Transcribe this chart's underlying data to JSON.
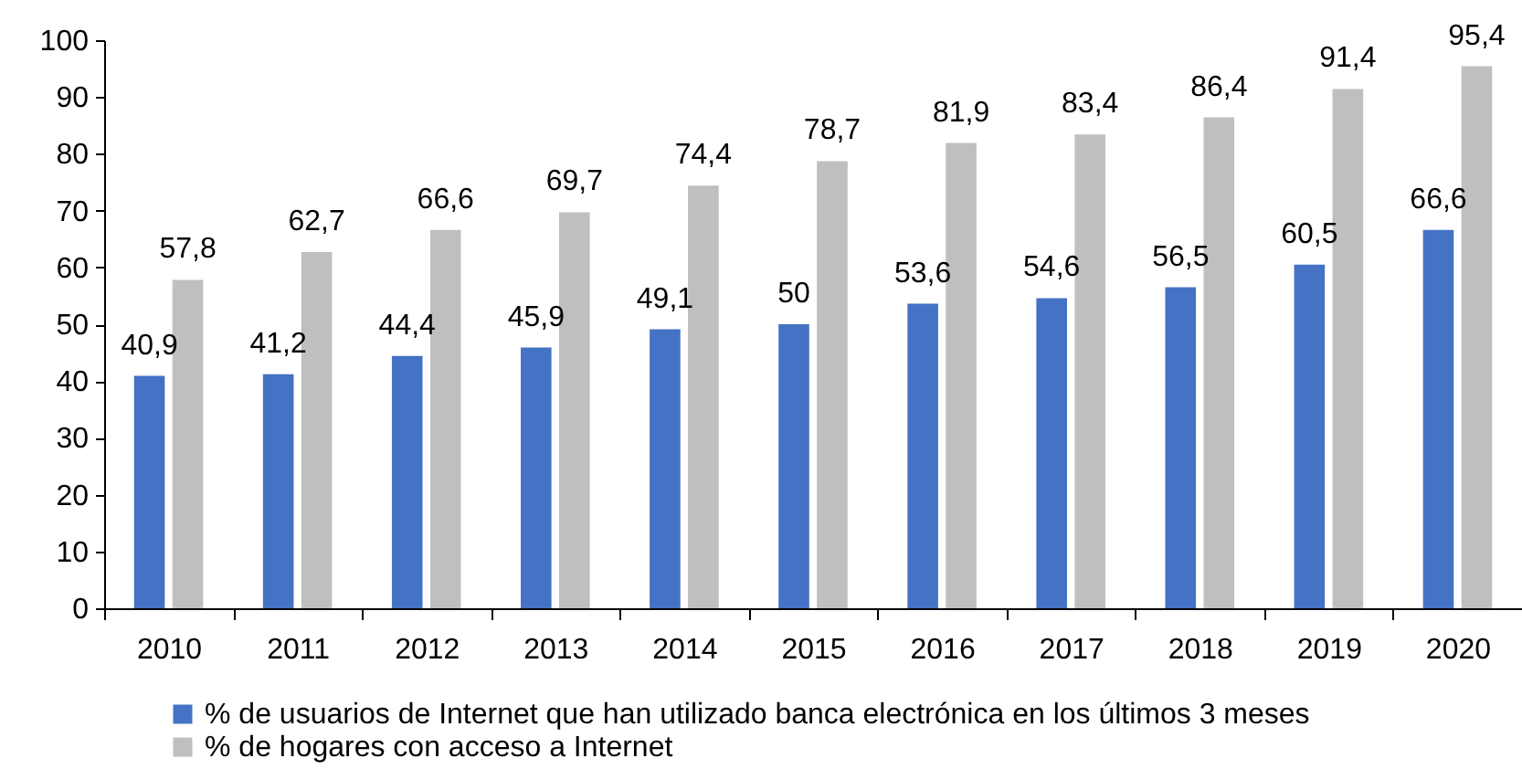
{
  "chart_data": {
    "type": "bar",
    "categories": [
      "2010",
      "2011",
      "2012",
      "2013",
      "2014",
      "2015",
      "2016",
      "2017",
      "2018",
      "2019",
      "2020"
    ],
    "series": [
      {
        "name": "% de usuarios de Internet que han utilizado banca electrónica en los últimos 3 meses",
        "color": "#4472c4",
        "values": [
          40.9,
          41.2,
          44.4,
          45.9,
          49.1,
          50,
          53.6,
          54.6,
          56.5,
          60.5,
          66.6
        ],
        "value_labels": [
          "40,9",
          "41,2",
          "44,4",
          "45,9",
          "49,1",
          "50",
          "53,6",
          "54,6",
          "56,5",
          "60,5",
          "66,6"
        ]
      },
      {
        "name": "% de hogares con acceso a Internet",
        "color": "#bfbfbf",
        "values": [
          57.8,
          62.7,
          66.6,
          69.7,
          74.4,
          78.7,
          81.9,
          83.4,
          86.4,
          91.4,
          95.4
        ],
        "value_labels": [
          "57,8",
          "62,7",
          "66,6",
          "69,7",
          "74,4",
          "78,7",
          "81,9",
          "83,4",
          "86,4",
          "91,4",
          "95,4"
        ]
      }
    ],
    "ylim": [
      0,
      100
    ],
    "yticks": [
      0,
      10,
      20,
      30,
      40,
      50,
      60,
      70,
      80,
      90,
      100
    ],
    "grid": false,
    "legend": "bottom"
  }
}
